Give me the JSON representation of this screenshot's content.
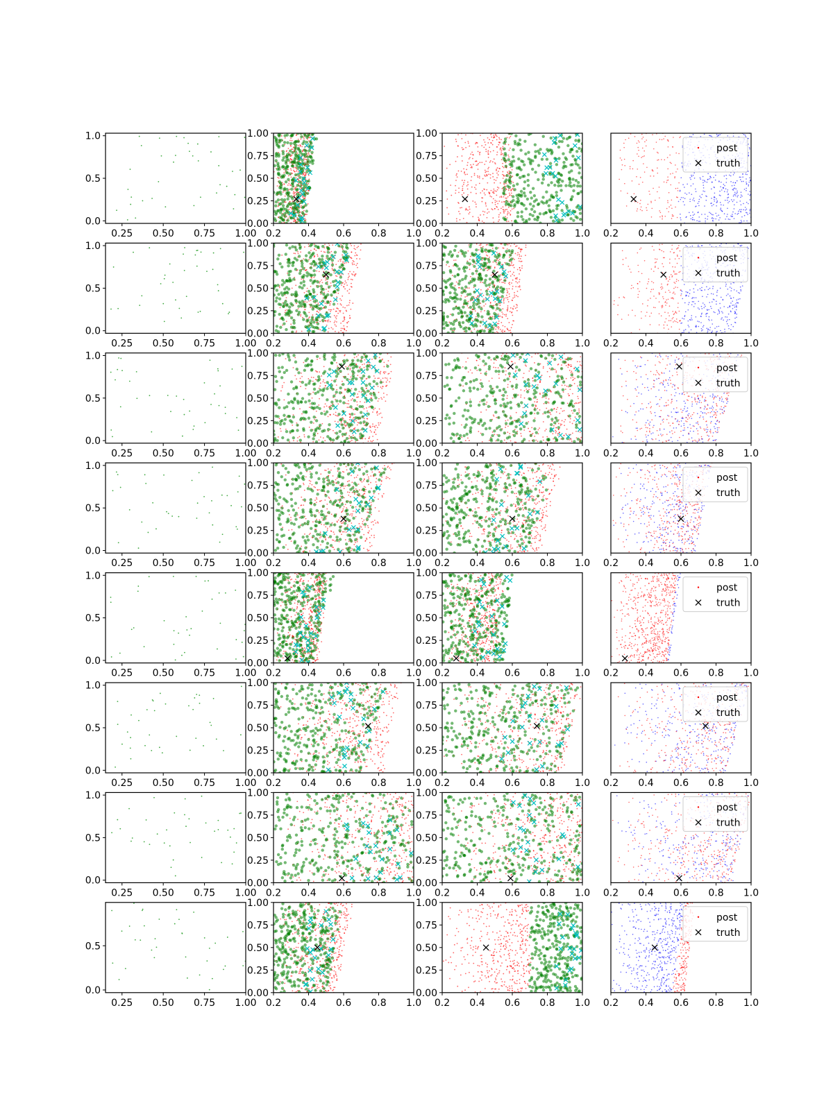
{
  "colors": {
    "posterior": "#ff0000",
    "prior": "#0000ff",
    "samples": "#008000",
    "highlight": "#00bfbf",
    "truth": "#000000",
    "observed": "#2ca02c"
  },
  "chart_data": {
    "type": "scatter",
    "layout": "8 rows x 4 columns grid of scatter panels",
    "axes_col1": {
      "xlim": [
        0.15,
        1.0
      ],
      "ylim": [
        -0.03,
        1.03
      ],
      "x_ticks": [
        "0.25",
        "0.50",
        "0.75",
        "1.00"
      ],
      "y_ticks": [
        "0.0",
        "0.5",
        "1.0"
      ]
    },
    "axes_col1_last_row": {
      "ylim": [
        -0.03,
        0.99
      ],
      "y_ticks": [
        "0.0",
        "0.5"
      ]
    },
    "axes_cols234": {
      "xlim": [
        0.2,
        1.0
      ],
      "ylim": [
        0.0,
        1.0
      ],
      "x_ticks": [
        "0.2",
        "0.4",
        "0.6",
        "0.8",
        "1.0"
      ],
      "y_ticks": [
        "0.00",
        "0.25",
        "0.50",
        "0.75",
        "1.00"
      ]
    },
    "legend": {
      "entries": [
        "post",
        "truth"
      ],
      "placement": "upper right of column-4 panels"
    },
    "rows": [
      {
        "truth": [
          0.33,
          0.27
        ],
        "c2": {
          "rEdge": [
            0.38,
            0.42
          ],
          "gEdge": [
            0.38,
            0.45
          ],
          "gMin": 0.2
        },
        "c3": {
          "rEdge": [
            0.6,
            0.6
          ],
          "gEdge": [
            1.0,
            1.0
          ],
          "gMin": 0.55
        },
        "c4": {
          "split": [
            0.58,
            0.6
          ],
          "bEdge": [
            1.0,
            1.0
          ],
          "blueRight": true
        }
      },
      {
        "truth": [
          0.5,
          0.65
        ],
        "c2": {
          "rEdge": [
            0.62,
            0.7
          ],
          "gEdge": [
            0.5,
            0.65
          ],
          "gMin": 0.2
        },
        "c3": {
          "rEdge": [
            0.6,
            0.68
          ],
          "gEdge": [
            0.5,
            0.62
          ],
          "gMin": 0.2
        },
        "c4": {
          "split": [
            0.6,
            0.6
          ],
          "bEdge": [
            0.9,
            1.0
          ],
          "blueRight": true
        }
      },
      {
        "truth": [
          0.59,
          0.85
        ],
        "c2": {
          "rEdge": [
            0.78,
            0.9
          ],
          "gEdge": [
            0.7,
            0.88
          ],
          "gMin": 0.2
        },
        "c3": {
          "rEdge": [
            1.0,
            1.0
          ],
          "gEdge": [
            1.0,
            1.0
          ],
          "gMin": 0.2
        },
        "c4": {
          "split": [
            0.0,
            0.0
          ],
          "bEdge": [
            0.8,
            0.95
          ],
          "blueRight": true
        }
      },
      {
        "truth": [
          0.6,
          0.38
        ],
        "c2": {
          "rEdge": [
            0.75,
            0.88
          ],
          "gEdge": [
            0.68,
            0.85
          ],
          "gMin": 0.2
        },
        "c3": {
          "rEdge": [
            0.75,
            0.88
          ],
          "gEdge": [
            0.68,
            0.85
          ],
          "gMin": 0.2
        },
        "c4": {
          "split": [
            0.0,
            0.0
          ],
          "bEdge": [
            0.68,
            0.78
          ],
          "blueRight": true
        }
      },
      {
        "truth": [
          0.28,
          0.05
        ],
        "c2": {
          "rEdge": [
            0.45,
            0.5
          ],
          "gEdge": [
            0.42,
            0.55
          ],
          "gMin": 0.2
        },
        "c3": {
          "rEdge": [
            0.5,
            0.55
          ],
          "gEdge": [
            0.55,
            0.6
          ],
          "gMin": 0.2
        },
        "c4": {
          "split": [
            0.52,
            0.58
          ],
          "bEdge": [
            0.53,
            0.6
          ],
          "blueRight": true
        }
      },
      {
        "truth": [
          0.74,
          0.52
        ],
        "c2": {
          "rEdge": [
            0.82,
            0.92
          ],
          "gEdge": [
            0.7,
            0.85
          ],
          "gMin": 0.2
        },
        "c3": {
          "rEdge": [
            0.88,
            1.0
          ],
          "gEdge": [
            0.85,
            1.0
          ],
          "gMin": 0.2
        },
        "c4": {
          "split": [
            0.0,
            0.0
          ],
          "bEdge": [
            0.85,
            1.0
          ],
          "blueRight": true
        }
      },
      {
        "truth": [
          0.59,
          0.05
        ],
        "c2": {
          "rEdge": [
            1.0,
            1.0
          ],
          "gEdge": [
            1.0,
            1.0
          ],
          "gMin": 0.2
        },
        "c3": {
          "rEdge": [
            1.0,
            1.0
          ],
          "gEdge": [
            1.0,
            1.0
          ],
          "gMin": 0.2
        },
        "c4": {
          "split": [
            0.0,
            0.0
          ],
          "bEdge": [
            0.9,
            1.0
          ],
          "blueRight": true
        }
      },
      {
        "truth": [
          0.45,
          0.5
        ],
        "c2": {
          "rEdge": [
            0.55,
            0.65
          ],
          "gEdge": [
            0.5,
            0.6
          ],
          "gMin": 0.2
        },
        "c3": {
          "rEdge": [
            0.7,
            0.7
          ],
          "gEdge": [
            1.0,
            1.0
          ],
          "gMin": 0.7
        },
        "c4": {
          "split": [
            0.55,
            0.62
          ],
          "bEdge": [
            0.62,
            0.68
          ],
          "blueRight": false
        }
      }
    ]
  }
}
